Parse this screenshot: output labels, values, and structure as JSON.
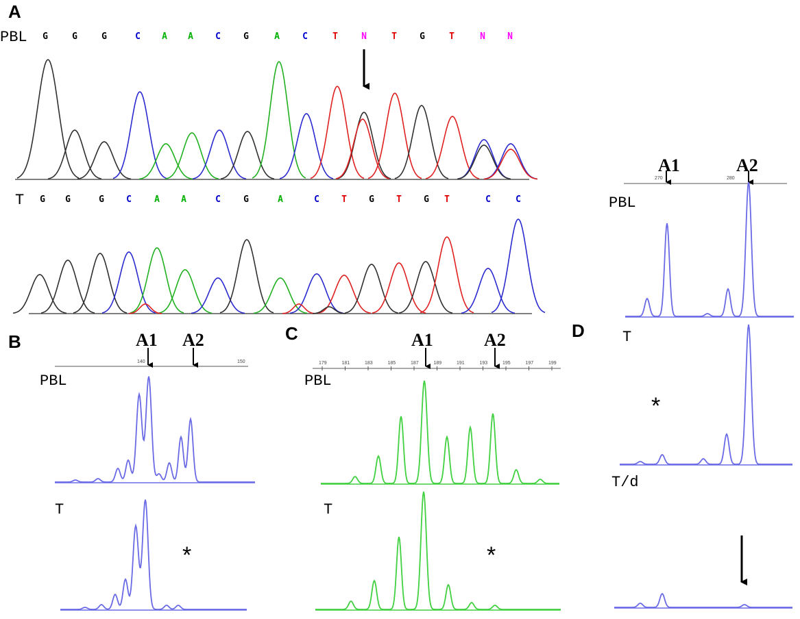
{
  "panels": {
    "A": {
      "letter": "A",
      "pbl_label": "PBL",
      "t_label": "T",
      "pbl_bases": [
        "G",
        "G",
        "G",
        "C",
        "A",
        "A",
        "C",
        "G",
        "A",
        "C",
        "T",
        "N",
        "T",
        "G",
        "T",
        "N",
        "N"
      ],
      "t_bases": [
        "G",
        "G",
        "G",
        "C",
        "A",
        "A",
        "C",
        "G",
        "A",
        "C",
        "T",
        "G",
        "T",
        "G",
        "T",
        "C",
        "C"
      ]
    },
    "B": {
      "letter": "B",
      "pbl_label": "PBL",
      "t_label": "T",
      "a1": "A1",
      "a2": "A2",
      "axis_ticks": [
        "140",
        "150"
      ],
      "star": "*"
    },
    "C": {
      "letter": "C",
      "pbl_label": "PBL",
      "t_label": "T",
      "a1": "A1",
      "a2": "A2",
      "axis_ticks": [
        "179",
        "181",
        "183",
        "185",
        "187",
        "189",
        "191",
        "193",
        "195",
        "197",
        "199"
      ],
      "star": "*"
    },
    "D": {
      "letter": "D",
      "pbl_label": "PBL",
      "t_label": "T",
      "td_label": "T/d",
      "a1": "A1",
      "a2": "A2",
      "axis_ticks": [
        "270",
        "280"
      ],
      "star": "*"
    }
  },
  "colors": {
    "G": "#000000",
    "A": "#00b000",
    "C": "#0000cc",
    "T": "#e00000",
    "N": "#ff00ff",
    "trace_black": "#303030",
    "trace_blue": "#2a2ad0",
    "trace_green": "#20b020",
    "trace_red": "#e02020",
    "frag_blue": "#6a6ae6",
    "frag_green": "#40d040",
    "arrow": "#000000"
  }
}
